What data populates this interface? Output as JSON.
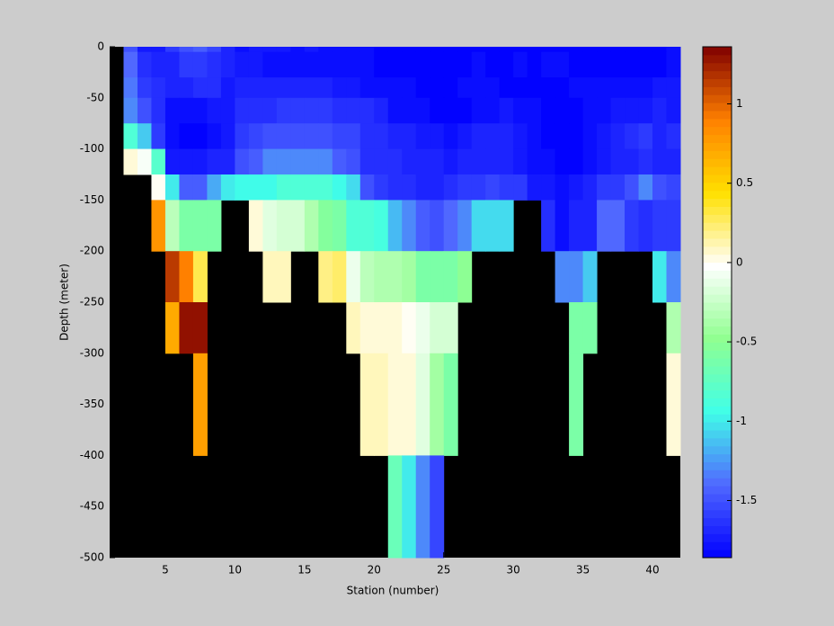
{
  "chart_data": {
    "type": "heatmap",
    "x_label": "Station (number)",
    "y_label": "Depth (meter)",
    "x": [
      1,
      2,
      3,
      4,
      5,
      6,
      7,
      8,
      9,
      10,
      11,
      12,
      13,
      14,
      15,
      16,
      17,
      18,
      19,
      20,
      21,
      22,
      23,
      24,
      25,
      26,
      27,
      28,
      29,
      30,
      31,
      32,
      33,
      34,
      35,
      36,
      37,
      38,
      39,
      40,
      41,
      42
    ],
    "y": [
      0,
      -5,
      -30,
      -50,
      -75,
      -100,
      -125,
      -150,
      -200,
      -250,
      -300,
      -400,
      -500
    ],
    "values": [
      [
        null,
        -1.5,
        -1.75,
        -1.75,
        -1.6,
        -1.5,
        -1.45,
        -1.55,
        -1.7,
        -1.8,
        -1.75,
        -1.75,
        -1.75,
        -1.8,
        -1.75,
        -1.8,
        -1.8,
        -1.8,
        -1.8,
        -1.85,
        -1.85,
        -1.85,
        -1.85,
        -1.85,
        -1.85,
        -1.85,
        -1.85,
        -1.85,
        -1.85,
        -1.85,
        -1.85,
        -1.85,
        -1.85,
        -1.85,
        -1.85,
        -1.85,
        -1.85,
        -1.85,
        -1.85,
        -1.85,
        -1.8
      ],
      [
        null,
        -1.4,
        -1.65,
        -1.7,
        -1.7,
        -1.6,
        -1.6,
        -1.65,
        -1.7,
        -1.75,
        -1.75,
        -1.8,
        -1.8,
        -1.8,
        -1.8,
        -1.8,
        -1.8,
        -1.8,
        -1.8,
        -1.85,
        -1.85,
        -1.85,
        -1.85,
        -1.85,
        -1.85,
        -1.85,
        -1.8,
        -1.85,
        -1.85,
        -1.8,
        -1.85,
        -1.8,
        -1.8,
        -1.85,
        -1.85,
        -1.85,
        -1.85,
        -1.85,
        -1.85,
        -1.85,
        -1.8
      ],
      [
        null,
        -1.35,
        -1.6,
        -1.65,
        -1.7,
        -1.7,
        -1.65,
        -1.65,
        -1.75,
        -1.7,
        -1.7,
        -1.7,
        -1.7,
        -1.7,
        -1.7,
        -1.7,
        -1.75,
        -1.75,
        -1.8,
        -1.8,
        -1.8,
        -1.8,
        -1.85,
        -1.85,
        -1.85,
        -1.8,
        -1.8,
        -1.8,
        -1.85,
        -1.85,
        -1.85,
        -1.85,
        -1.85,
        -1.8,
        -1.8,
        -1.8,
        -1.8,
        -1.8,
        -1.8,
        -1.75,
        -1.75
      ],
      [
        null,
        -1.3,
        -1.5,
        -1.65,
        -1.8,
        -1.8,
        -1.8,
        -1.75,
        -1.75,
        -1.65,
        -1.65,
        -1.65,
        -1.6,
        -1.6,
        -1.6,
        -1.6,
        -1.65,
        -1.65,
        -1.65,
        -1.7,
        -1.8,
        -1.8,
        -1.8,
        -1.85,
        -1.85,
        -1.85,
        -1.8,
        -1.8,
        -1.75,
        -1.8,
        -1.8,
        -1.85,
        -1.85,
        -1.85,
        -1.8,
        -1.8,
        -1.75,
        -1.75,
        -1.75,
        -1.7,
        -1.75
      ],
      [
        null,
        -0.85,
        -1.1,
        -1.6,
        -1.8,
        -1.85,
        -1.85,
        -1.8,
        -1.75,
        -1.6,
        -1.55,
        -1.5,
        -1.5,
        -1.5,
        -1.5,
        -1.5,
        -1.55,
        -1.55,
        -1.65,
        -1.65,
        -1.7,
        -1.7,
        -1.75,
        -1.75,
        -1.8,
        -1.75,
        -1.7,
        -1.7,
        -1.7,
        -1.75,
        -1.8,
        -1.85,
        -1.85,
        -1.85,
        -1.8,
        -1.75,
        -1.7,
        -1.65,
        -1.6,
        -1.7,
        -1.65
      ],
      [
        null,
        0.05,
        -0.05,
        -0.8,
        -1.75,
        -1.75,
        -1.75,
        -1.7,
        -1.7,
        -1.5,
        -1.45,
        -1.3,
        -1.3,
        -1.3,
        -1.3,
        -1.3,
        -1.45,
        -1.5,
        -1.65,
        -1.65,
        -1.65,
        -1.7,
        -1.7,
        -1.7,
        -1.75,
        -1.7,
        -1.7,
        -1.7,
        -1.7,
        -1.75,
        -1.8,
        -1.8,
        -1.85,
        -1.85,
        -1.8,
        -1.75,
        -1.7,
        -1.7,
        -1.65,
        -1.7,
        -1.7
      ],
      [
        null,
        null,
        null,
        0.0,
        -1.0,
        -1.45,
        -1.45,
        -1.2,
        -1.0,
        -0.95,
        -0.95,
        -0.95,
        -0.85,
        -0.85,
        -0.85,
        -0.85,
        -0.95,
        -1.05,
        -1.5,
        -1.6,
        -1.65,
        -1.65,
        -1.7,
        -1.7,
        -1.65,
        -1.6,
        -1.6,
        -1.55,
        -1.6,
        -1.6,
        -1.75,
        -1.75,
        -1.8,
        -1.75,
        -1.7,
        -1.6,
        -1.6,
        -1.5,
        -1.3,
        -1.5,
        -1.55
      ],
      [
        null,
        null,
        null,
        0.8,
        -0.3,
        -0.6,
        -0.6,
        -0.6,
        null,
        null,
        0.05,
        -0.15,
        -0.2,
        -0.2,
        -0.35,
        -0.55,
        -0.6,
        -0.85,
        -0.85,
        -0.9,
        -1.15,
        -1.3,
        -1.45,
        -1.5,
        -1.4,
        -1.3,
        -1.05,
        -1.05,
        -1.05,
        null,
        null,
        -1.65,
        -1.8,
        -1.7,
        -1.7,
        -1.4,
        -1.4,
        -1.6,
        -1.65,
        -1.6,
        -1.6
      ],
      [
        null,
        null,
        null,
        null,
        1.15,
        0.9,
        0.3,
        null,
        null,
        null,
        null,
        0.1,
        0.1,
        null,
        null,
        0.2,
        0.25,
        -0.1,
        -0.3,
        -0.35,
        -0.35,
        -0.4,
        -0.6,
        -0.6,
        -0.6,
        -0.5,
        null,
        null,
        null,
        null,
        null,
        null,
        -1.3,
        -1.3,
        -1.1,
        null,
        null,
        null,
        null,
        -1.0,
        -1.3
      ],
      [
        null,
        null,
        null,
        null,
        0.7,
        1.3,
        1.3,
        null,
        null,
        null,
        null,
        null,
        null,
        null,
        null,
        null,
        null,
        0.1,
        0.05,
        0.05,
        0.05,
        0.0,
        -0.1,
        -0.2,
        -0.2,
        null,
        null,
        null,
        null,
        null,
        null,
        null,
        null,
        -0.6,
        -0.6,
        null,
        null,
        null,
        null,
        null,
        -0.35
      ],
      [
        null,
        null,
        null,
        null,
        null,
        null,
        0.75,
        null,
        null,
        null,
        null,
        null,
        null,
        null,
        null,
        null,
        null,
        null,
        0.1,
        0.1,
        0.05,
        0.05,
        -0.15,
        -0.4,
        -0.6,
        null,
        null,
        null,
        null,
        null,
        null,
        null,
        null,
        -0.6,
        null,
        null,
        null,
        null,
        null,
        null,
        0.05
      ],
      [
        null,
        null,
        null,
        null,
        null,
        null,
        null,
        null,
        null,
        null,
        null,
        null,
        null,
        null,
        null,
        null,
        null,
        null,
        null,
        null,
        -0.7,
        -1.0,
        -1.3,
        -1.55,
        null,
        null,
        null,
        null,
        null,
        null,
        null,
        null,
        null,
        null,
        null,
        null,
        null,
        null,
        null,
        null,
        null
      ]
    ],
    "xlim": [
      1,
      42
    ],
    "ylim": [
      -500,
      0
    ],
    "xticks": [
      5,
      10,
      15,
      20,
      25,
      30,
      35,
      40
    ],
    "yticks": [
      0,
      -50,
      -100,
      -150,
      -200,
      -250,
      -300,
      -350,
      -400,
      -450,
      -500
    ],
    "clim": [
      -1.86,
      1.36
    ],
    "cticks": [
      -1.5,
      -1,
      -0.5,
      0,
      0.5,
      1
    ],
    "colormap": [
      "#0000ff",
      "#5068ff",
      "#40ffe8",
      "#90ff90",
      "#ffffff",
      "#ffe000",
      "#ff8000",
      "#800000"
    ],
    "background_color": "#000000"
  }
}
